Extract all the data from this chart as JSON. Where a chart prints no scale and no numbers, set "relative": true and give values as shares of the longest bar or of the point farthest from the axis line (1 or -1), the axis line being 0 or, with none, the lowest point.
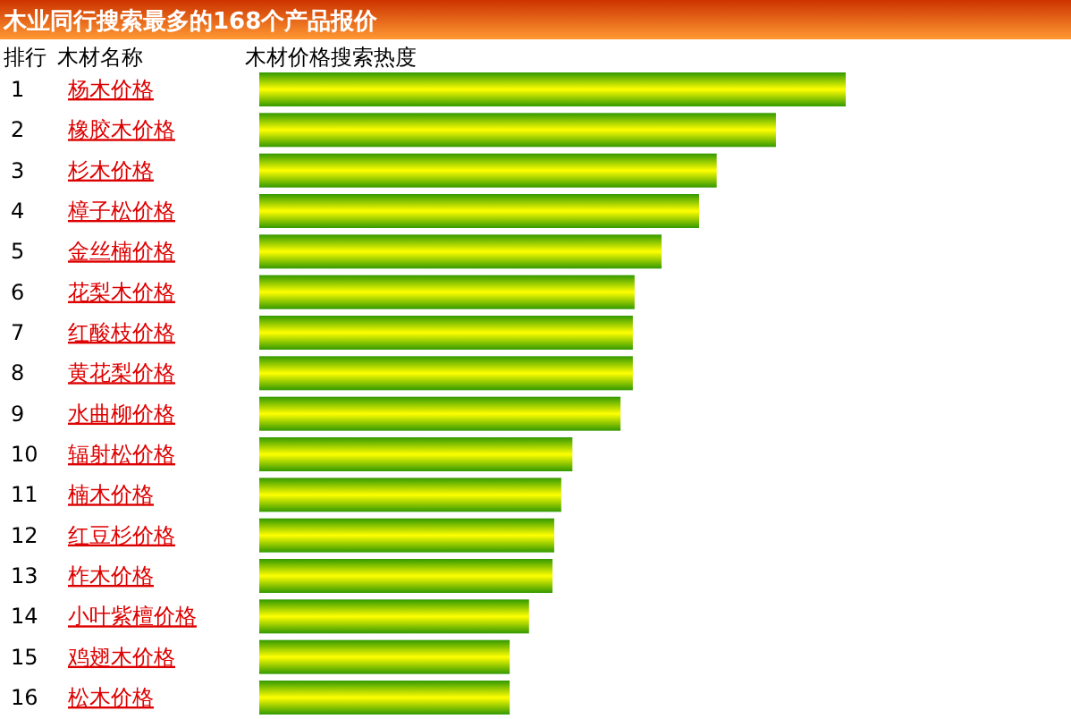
{
  "chart_data": {
    "type": "bar",
    "orientation": "horizontal",
    "relative": true,
    "title": "木业同行搜索最多的168个产品报价",
    "ylabel": "木材名称",
    "xlabel": "木材价格搜索热度",
    "annotations": [
      "排行",
      "1",
      "2",
      "3",
      "4",
      "5",
      "6",
      "7",
      "8",
      "9",
      "10",
      "11",
      "12",
      "13",
      "14",
      "15",
      "16"
    ],
    "categories": [
      "杨木价格",
      "橡胶木价格",
      "杉木价格",
      "樟子松价格",
      "金丝楠价格",
      "花梨木价格",
      "红酸枝价格",
      "黄花梨价格",
      "水曲柳价格",
      "辐射松价格",
      "楠木价格",
      "红豆杉价格",
      "柞木价格",
      "小叶紫檀价格",
      "鸡翅木价格",
      "松木价格"
    ],
    "values": [
      1,
      0.881,
      0.78,
      0.75,
      0.686,
      0.64,
      0.637,
      0.637,
      0.616,
      0.534,
      0.515,
      0.503,
      0.5,
      0.46,
      0.427,
      0.427
    ],
    "color": "#339900"
  }
}
